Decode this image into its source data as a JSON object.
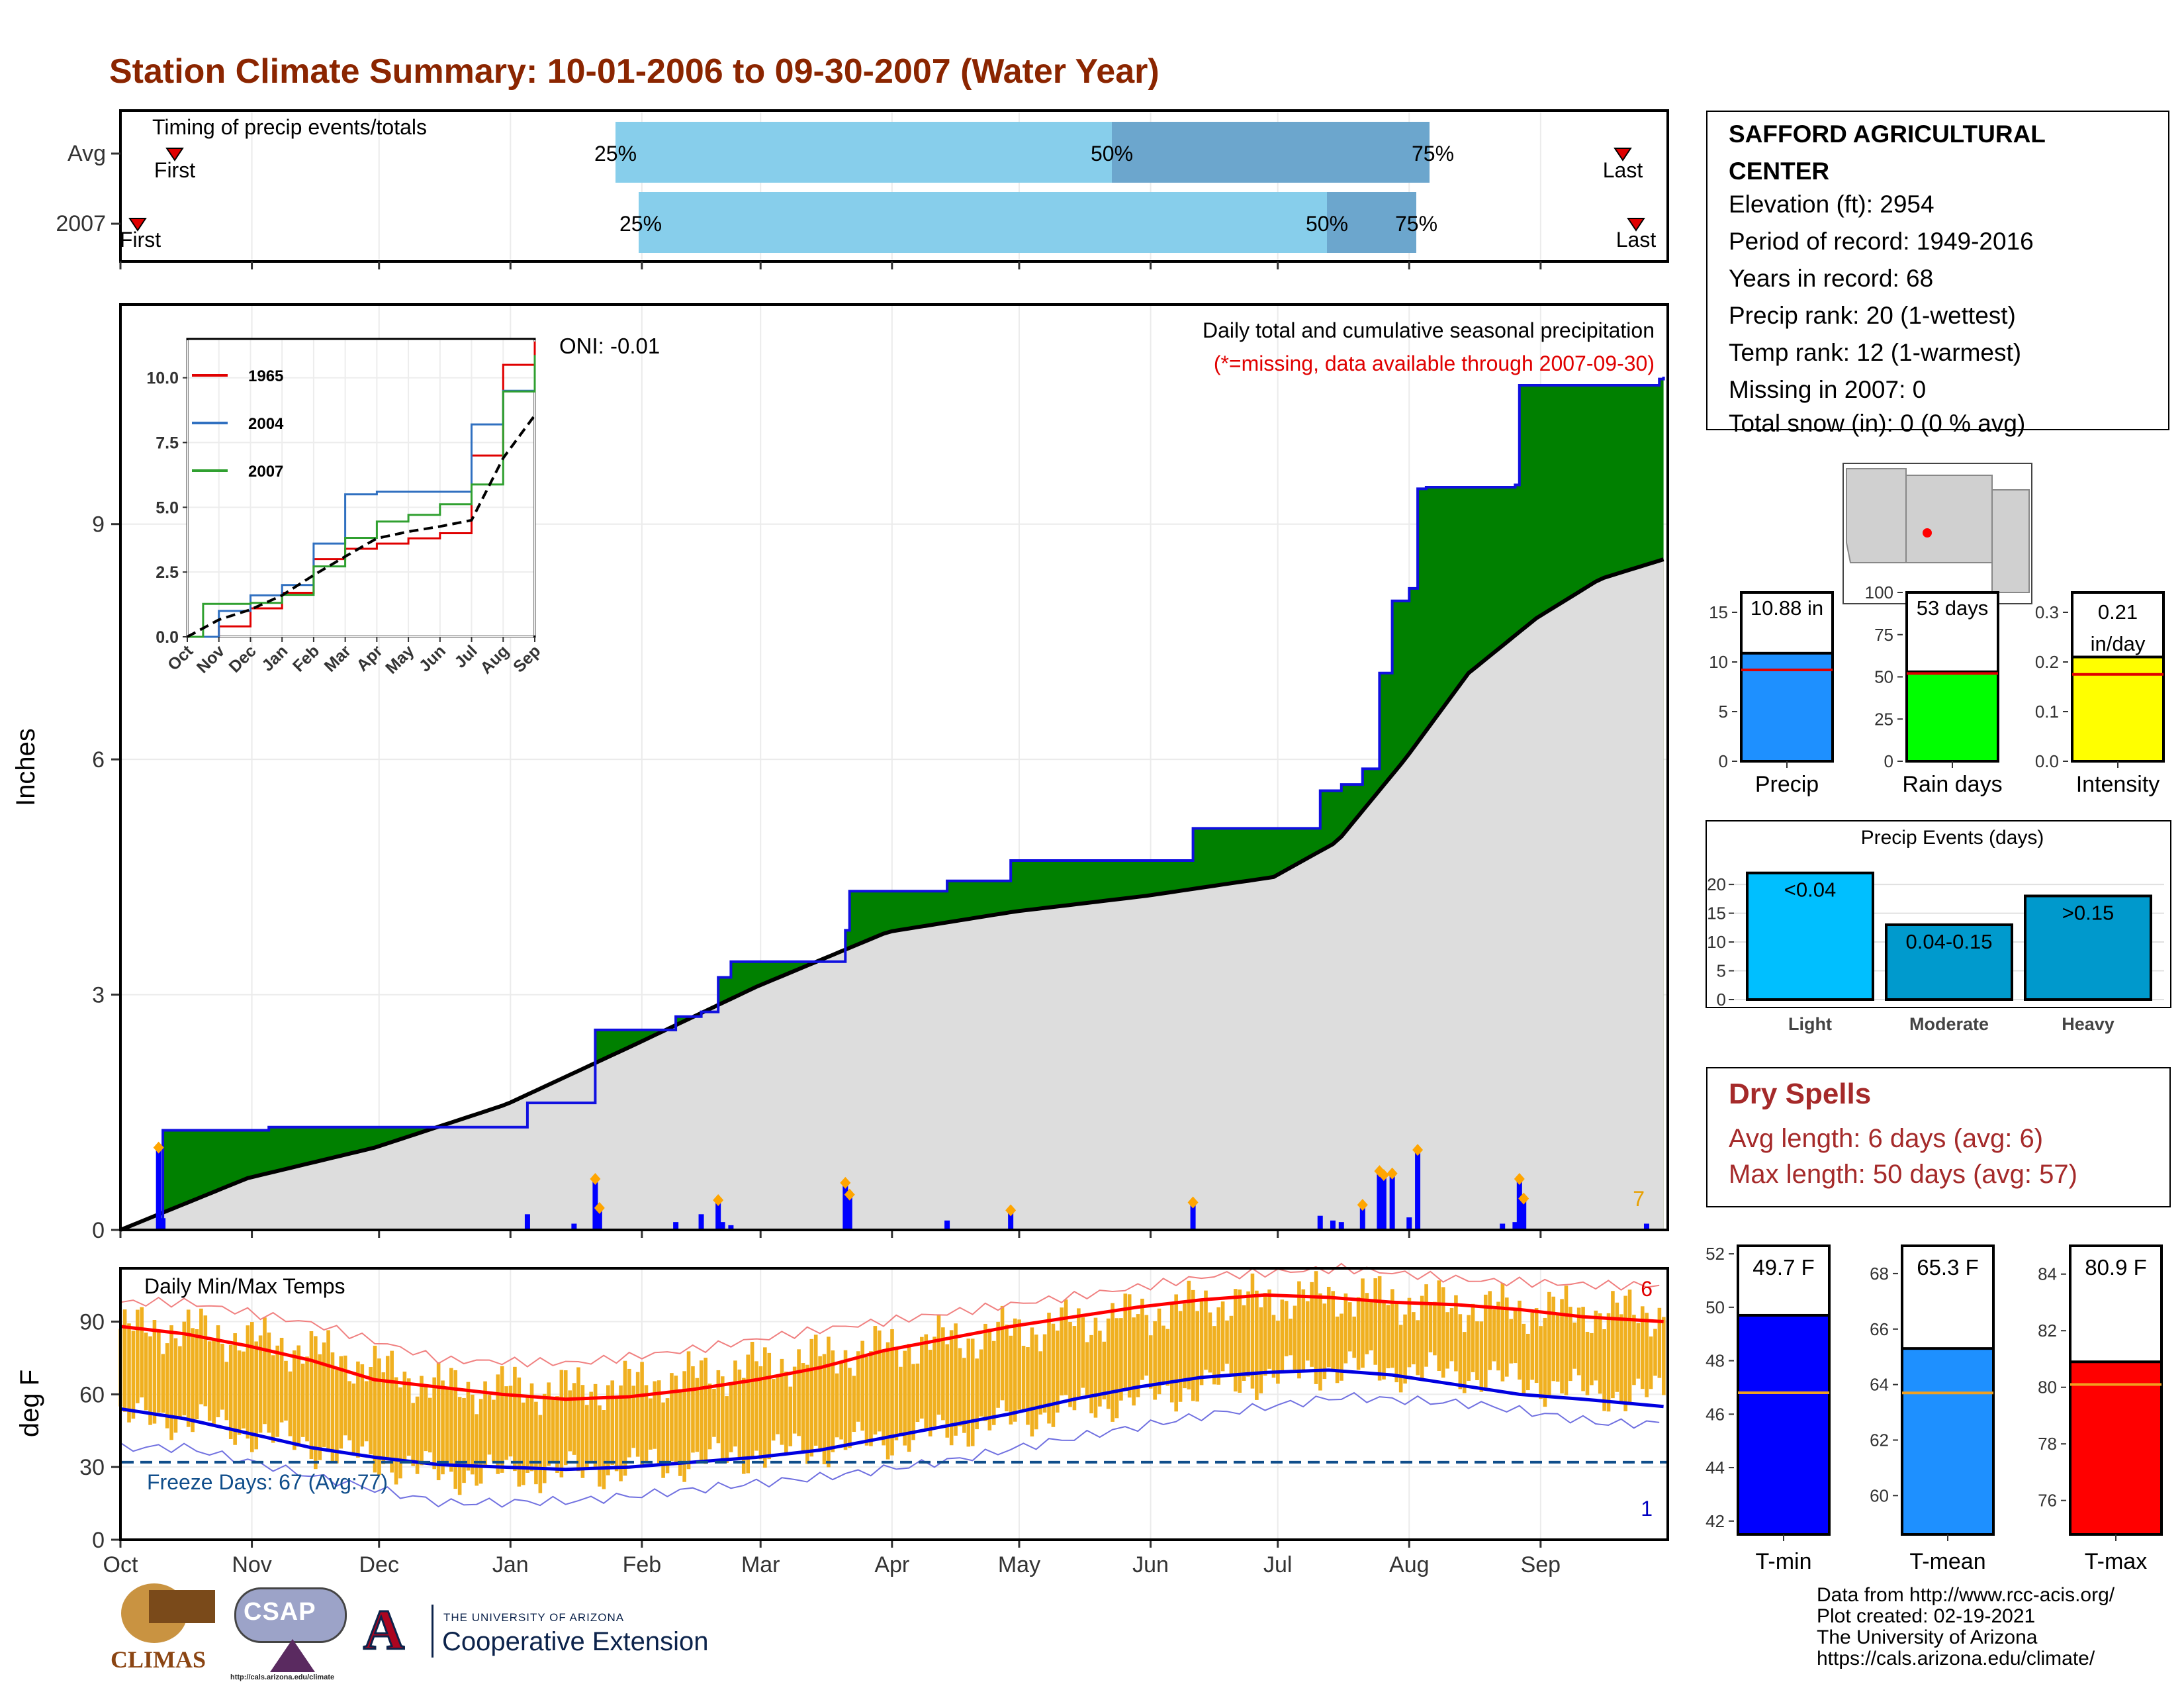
{
  "title": "Station Climate Summary: 10-01-2006 to 09-30-2007 (Water Year)",
  "colors": {
    "title": "#8B2500",
    "cum_2007": "#008000",
    "cum_deficit": "#7F5000",
    "avg_fill": "#DDDDDD",
    "daily_bar": "#0000FF",
    "tmin": "#0000FF",
    "tmean": "#1E90FF",
    "tmax": "#FF0000",
    "rain_days": "#00FF00",
    "intensity": "#FFFF00",
    "events": [
      "#00BFFF",
      "#009ACD",
      "#0099CC"
    ],
    "temp_bar": "#F0B020",
    "dry_spells": "#A52A2A"
  },
  "timing": {
    "title": "Timing of precip events/totals",
    "rows": [
      {
        "label": "Avg",
        "first": "First",
        "last": "Last",
        "p25": "25%",
        "p50": "50%",
        "p75": "75%"
      },
      {
        "label": "2007",
        "first": "First",
        "last": "Last",
        "p25": "25%",
        "p50": "50%",
        "p75": "75%"
      }
    ]
  },
  "precip_panel": {
    "ylabel": "Inches",
    "oni": "ONI: -0.01",
    "title": "Daily total and cumulative seasonal precipitation",
    "note": "(*=missing, data available through 2007-09-30)",
    "count": "7",
    "yticks": [
      "0",
      "3",
      "6",
      "9"
    ]
  },
  "inset": {
    "legend": [
      "1965",
      "2004",
      "2007"
    ],
    "yticks": [
      "0.0",
      "2.5",
      "5.0",
      "7.5",
      "10.0"
    ],
    "xticks": [
      "Oct",
      "Nov",
      "Dec",
      "Jan",
      "Feb",
      "Mar",
      "Apr",
      "May",
      "Jun",
      "Jul",
      "Aug",
      "Sep"
    ]
  },
  "temp_panel": {
    "ylabel": "deg F",
    "title": "Daily Min/Max Temps",
    "freeze": "Freeze Days: 67 (Avg:77)",
    "max_count": "6",
    "min_count": "1",
    "yticks": [
      "0",
      "30",
      "60",
      "90"
    ],
    "xticks": [
      "Oct",
      "Nov",
      "Dec",
      "Jan",
      "Feb",
      "Mar",
      "Apr",
      "May",
      "Jun",
      "Jul",
      "Aug",
      "Sep"
    ]
  },
  "station": {
    "name": "SAFFORD AGRICULTURAL CENTER",
    "lines": [
      "Elevation (ft): 2954",
      "Period of record: 1949-2016",
      "Years in record: 68",
      "Precip rank: 20 (1-wettest)",
      "Temp rank: 12 (1-warmest)",
      "Missing in 2007: 0",
      "Total snow (in): 0 (0 % avg)"
    ]
  },
  "summary_bars": [
    {
      "label": "Precip",
      "value_text": "10.88 in",
      "value": 10.88,
      "avg": 9.2,
      "ymax": 17,
      "yticks": [
        "0",
        "5",
        "10",
        "15"
      ],
      "tickvals": [
        0,
        5,
        10,
        15
      ]
    },
    {
      "label": "Rain days",
      "value_text": "53 days",
      "value": 53,
      "avg": 52,
      "ymax": 100,
      "yticks": [
        "0",
        "25",
        "50",
        "75",
        "100"
      ],
      "tickvals": [
        0,
        25,
        50,
        75,
        100
      ]
    },
    {
      "label": "Intensity",
      "value_text_1": "0.21",
      "value_text_2": "in/day",
      "value": 0.21,
      "avg": 0.175,
      "ymax": 0.34,
      "yticks": [
        "0.0",
        "0.1",
        "0.2",
        "0.3"
      ],
      "tickvals": [
        0,
        0.1,
        0.2,
        0.3
      ]
    }
  ],
  "events": {
    "title": "Precip Events (days)",
    "categories": [
      "Light",
      "Moderate",
      "Heavy"
    ],
    "bar_labels": [
      "<0.04",
      "0.04-0.15",
      ">0.15"
    ],
    "values": [
      22,
      13,
      18
    ],
    "yticks": [
      "0",
      "5",
      "10",
      "15",
      "20"
    ]
  },
  "dry_spells": {
    "title": "Dry Spells",
    "avg_length": "Avg length: 6 days (avg: 6)",
    "max_length": "Max length: 50 days (avg: 57)"
  },
  "temp_bars": [
    {
      "label": "T-min",
      "value_text": "49.7 F",
      "value": 49.7,
      "avg": 46.8,
      "ymin": 41.5,
      "ymax": 52.3,
      "yticks": [
        "42",
        "44",
        "46",
        "48",
        "50",
        "52"
      ],
      "tickvals": [
        42,
        44,
        46,
        48,
        50,
        52
      ]
    },
    {
      "label": "T-mean",
      "value_text": "65.3 F",
      "value": 65.3,
      "avg": 63.7,
      "ymin": 58.6,
      "ymax": 69.0,
      "yticks": [
        "60",
        "62",
        "64",
        "66",
        "68"
      ],
      "tickvals": [
        60,
        62,
        64,
        66,
        68
      ]
    },
    {
      "label": "T-max",
      "value_text": "80.9 F",
      "value": 80.9,
      "avg": 80.1,
      "ymin": 74.8,
      "ymax": 85.0,
      "yticks": [
        "76",
        "78",
        "80",
        "82",
        "84"
      ],
      "tickvals": [
        76,
        78,
        80,
        82,
        84
      ]
    }
  ],
  "footer": {
    "lines": [
      "Data from http://www.rcc-acis.org/",
      "Plot created: 02-19-2021",
      "The University of Arizona",
      "https://cals.arizona.edu/climate/"
    ],
    "logo_climas": "CLIMAS",
    "logo_csap": "CSAP",
    "logo_csap_url": "http://cals.arizona.edu/climate",
    "ua_small": "THE UNIVERSITY OF ARIZONA",
    "ua_big": "Cooperative Extension",
    "ua_letter": "A"
  },
  "chart_data": [
    {
      "type": "bar",
      "title": "Timing of precip events/totals",
      "categories": [
        "Avg",
        "2007"
      ],
      "series": [
        {
          "name": "First",
          "values": [
            "Oct 14",
            "Oct 5"
          ]
        },
        {
          "name": "25%",
          "values": [
            "Jan 29",
            "Feb 2"
          ]
        },
        {
          "name": "50%",
          "values": [
            "Jun 12",
            "Jul 13"
          ]
        },
        {
          "name": "75%",
          "values": [
            "Aug 1",
            "Jul 31"
          ]
        },
        {
          "name": "Last",
          "values": [
            "Sep 17",
            "Sep 20"
          ]
        }
      ]
    },
    {
      "type": "area",
      "title": "Daily total and cumulative seasonal precipitation",
      "ylabel": "Inches",
      "ylim": [
        0,
        11.8
      ],
      "x_range": [
        "2006-10-01",
        "2007-09-30"
      ],
      "cumulative_2007": [
        [
          "2006-10-01",
          0.0
        ],
        [
          "2006-10-10",
          0.06
        ],
        [
          "2006-10-11",
          1.27
        ],
        [
          "2006-11-05",
          1.31
        ],
        [
          "2006-12-11",
          1.31
        ],
        [
          "2007-01-05",
          1.62
        ],
        [
          "2007-01-20",
          1.62
        ],
        [
          "2007-01-21",
          2.55
        ],
        [
          "2007-02-09",
          2.72
        ],
        [
          "2007-02-15",
          2.78
        ],
        [
          "2007-02-19",
          3.22
        ],
        [
          "2007-02-22",
          3.42
        ],
        [
          "2007-03-06",
          3.42
        ],
        [
          "2007-03-16",
          3.42
        ],
        [
          "2007-03-21",
          3.82
        ],
        [
          "2007-03-22",
          4.32
        ],
        [
          "2007-04-14",
          4.45
        ],
        [
          "2007-04-29",
          4.71
        ],
        [
          "2007-06-11",
          5.12
        ],
        [
          "2007-07-10",
          5.12
        ],
        [
          "2007-07-11",
          5.6
        ],
        [
          "2007-07-16",
          5.68
        ],
        [
          "2007-07-21",
          5.88
        ],
        [
          "2007-07-25",
          7.1
        ],
        [
          "2007-07-28",
          8.02
        ],
        [
          "2007-08-01",
          8.18
        ],
        [
          "2007-08-03",
          9.45
        ],
        [
          "2007-08-05",
          9.47
        ],
        [
          "2007-08-26",
          9.5
        ],
        [
          "2007-08-27",
          10.77
        ],
        [
          "2007-09-29",
          10.85
        ],
        [
          "2007-09-30",
          10.88
        ]
      ],
      "cumulative_avg": [
        [
          "2006-10-01",
          0.0
        ],
        [
          "2006-10-31",
          0.66
        ],
        [
          "2006-11-30",
          1.05
        ],
        [
          "2006-12-31",
          1.6
        ],
        [
          "2007-01-31",
          2.38
        ],
        [
          "2007-02-28",
          3.1
        ],
        [
          "2007-03-31",
          3.8
        ],
        [
          "2007-04-30",
          4.06
        ],
        [
          "2007-05-31",
          4.26
        ],
        [
          "2007-06-30",
          4.5
        ],
        [
          "2007-07-15",
          4.95
        ],
        [
          "2007-07-31",
          6.0
        ],
        [
          "2007-08-15",
          7.1
        ],
        [
          "2007-08-31",
          7.8
        ],
        [
          "2007-09-15",
          8.3
        ],
        [
          "2007-09-30",
          8.55
        ]
      ],
      "daily_precip": [
        [
          "2006-10-10",
          1.05
        ],
        [
          "2006-10-11",
          0.15
        ],
        [
          "2007-01-05",
          0.2
        ],
        [
          "2007-01-16",
          0.08
        ],
        [
          "2007-01-21",
          0.65
        ],
        [
          "2007-01-22",
          0.28
        ],
        [
          "2007-02-09",
          0.1
        ],
        [
          "2007-02-15",
          0.2
        ],
        [
          "2007-02-19",
          0.38
        ],
        [
          "2007-02-20",
          0.1
        ],
        [
          "2007-02-22",
          0.06
        ],
        [
          "2007-03-21",
          0.6
        ],
        [
          "2007-03-22",
          0.45
        ],
        [
          "2007-04-14",
          0.12
        ],
        [
          "2007-04-29",
          0.25
        ],
        [
          "2007-06-11",
          0.35
        ],
        [
          "2007-07-11",
          0.18
        ],
        [
          "2007-07-14",
          0.12
        ],
        [
          "2007-07-16",
          0.1
        ],
        [
          "2007-07-21",
          0.32
        ],
        [
          "2007-07-25",
          0.75
        ],
        [
          "2007-07-26",
          0.7
        ],
        [
          "2007-07-28",
          0.72
        ],
        [
          "2007-08-01",
          0.16
        ],
        [
          "2007-08-03",
          1.02
        ],
        [
          "2007-08-23",
          0.08
        ],
        [
          "2007-08-26",
          0.1
        ],
        [
          "2007-08-27",
          0.65
        ],
        [
          "2007-08-28",
          0.4
        ],
        [
          "2007-09-26",
          0.08
        ]
      ]
    },
    {
      "type": "line",
      "title": "",
      "ylim": [
        0,
        11.5
      ],
      "x_range": [
        "Oct",
        "Sep"
      ],
      "series": [
        {
          "name": "1965",
          "values": [
            [
              0,
              0
            ],
            [
              1.0,
              0.4
            ],
            [
              2.0,
              1.1
            ],
            [
              3.0,
              1.7
            ],
            [
              4.0,
              3.0
            ],
            [
              5.0,
              3.4
            ],
            [
              6.0,
              3.6
            ],
            [
              7.0,
              3.8
            ],
            [
              8.0,
              4.0
            ],
            [
              9.0,
              7.0
            ],
            [
              10.0,
              10.5
            ],
            [
              11.0,
              11.4
            ]
          ]
        },
        {
          "name": "2004",
          "values": [
            [
              0,
              0
            ],
            [
              1.0,
              1.0
            ],
            [
              2.0,
              1.6
            ],
            [
              3.0,
              2.0
            ],
            [
              4.0,
              3.6
            ],
            [
              5.0,
              5.5
            ],
            [
              6.0,
              5.6
            ],
            [
              7.0,
              5.6
            ],
            [
              8.0,
              5.6
            ],
            [
              9.0,
              8.2
            ],
            [
              10.0,
              9.5
            ],
            [
              11.0,
              10.0
            ]
          ]
        },
        {
          "name": "2007",
          "values": [
            [
              0,
              0
            ],
            [
              0.5,
              1.27
            ],
            [
              2.0,
              1.31
            ],
            [
              3.0,
              1.62
            ],
            [
              4.0,
              2.72
            ],
            [
              5.0,
              3.82
            ],
            [
              6.0,
              4.45
            ],
            [
              7.0,
              4.71
            ],
            [
              8.0,
              5.12
            ],
            [
              9.0,
              5.88
            ],
            [
              10.0,
              9.47
            ],
            [
              11.0,
              10.88
            ]
          ]
        },
        {
          "values": [
            [
              0,
              0
            ],
            [
              1.0,
              0.66
            ],
            [
              2.0,
              1.05
            ],
            [
              3.0,
              1.6
            ],
            [
              4.0,
              2.38
            ],
            [
              5.0,
              3.1
            ],
            [
              6.0,
              3.8
            ],
            [
              7.0,
              4.06
            ],
            [
              8.0,
              4.26
            ],
            [
              9.0,
              4.5
            ],
            [
              10.0,
              6.9
            ],
            [
              11.0,
              8.55
            ]
          ]
        }
      ]
    },
    {
      "type": "line",
      "title": "Daily Min/Max Temps",
      "ylabel": "deg F",
      "ylim": [
        0,
        112
      ],
      "x_range": [
        "2006-10-01",
        "2007-09-30"
      ],
      "series": [
        {
          "values": [
            [
              0,
              88
            ],
            [
              15,
              85
            ],
            [
              30,
              80
            ],
            [
              45,
              74
            ],
            [
              60,
              66
            ],
            [
              75,
              63
            ],
            [
              90,
              60
            ],
            [
              105,
              58
            ],
            [
              120,
              59
            ],
            [
              135,
              62
            ],
            [
              150,
              66
            ],
            [
              165,
              71
            ],
            [
              180,
              78
            ],
            [
              195,
              83
            ],
            [
              210,
              88
            ],
            [
              225,
              92
            ],
            [
              240,
              96
            ],
            [
              255,
              99
            ],
            [
              270,
              101
            ],
            [
              285,
              100
            ],
            [
              300,
              98
            ],
            [
              315,
              97
            ],
            [
              330,
              95
            ],
            [
              345,
              92
            ],
            [
              364,
              90
            ]
          ]
        },
        {
          "values": [
            [
              0,
              54
            ],
            [
              15,
              50
            ],
            [
              30,
              44
            ],
            [
              45,
              38
            ],
            [
              60,
              34
            ],
            [
              75,
              31
            ],
            [
              90,
              30
            ],
            [
              105,
              29
            ],
            [
              120,
              30
            ],
            [
              135,
              32
            ],
            [
              150,
              34
            ],
            [
              165,
              37
            ],
            [
              180,
              42
            ],
            [
              195,
              47
            ],
            [
              210,
              52
            ],
            [
              225,
              58
            ],
            [
              240,
              63
            ],
            [
              255,
              67
            ],
            [
              270,
              69
            ],
            [
              285,
              70
            ],
            [
              300,
              68
            ],
            [
              315,
              64
            ],
            [
              330,
              60
            ],
            [
              345,
              58
            ],
            [
              364,
              55
            ]
          ]
        },
        {
          "name": "Freeze Days: 67 (Avg:77)",
          "values": [
            [
              0,
              32
            ],
            [
              364,
              32
            ]
          ]
        }
      ],
      "daily_range": {
        "month_max": [
          87,
          78,
          63,
          62,
          68,
          76,
          83,
          90,
          98,
          101,
          96,
          94
        ],
        "month_min": [
          50,
          38,
          27,
          28,
          33,
          38,
          45,
          55,
          64,
          71,
          68,
          60
        ]
      }
    },
    {
      "type": "bar",
      "categories": [
        "Precip",
        "Rain days",
        "Intensity"
      ],
      "values": [
        10.88,
        53,
        0.21
      ]
    },
    {
      "type": "bar",
      "title": "Precip Events (days)",
      "categories": [
        "Light",
        "Moderate",
        "Heavy"
      ],
      "values": [
        22,
        13,
        18
      ],
      "ylim": [
        0,
        23
      ]
    },
    {
      "type": "bar",
      "categories": [
        "T-min",
        "T-mean",
        "T-max"
      ],
      "values": [
        49.7,
        65.3,
        80.9
      ]
    }
  ]
}
